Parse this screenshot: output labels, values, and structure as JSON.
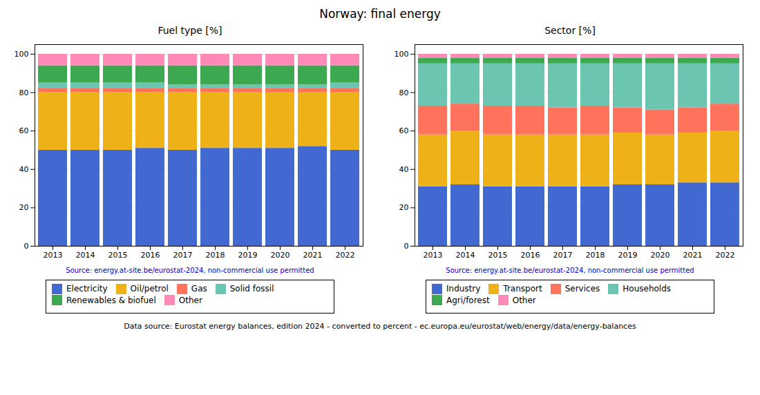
{
  "title": "Norway: final energy",
  "annotations": [
    {
      "text": "Data source: Eurostat energy balances, edition 2024 - converted to percent - ec.europa.eu/eurostat/web/energy/data/energy-balances"
    }
  ],
  "chart_data": [
    {
      "type": "bar",
      "stacked": true,
      "title": "Fuel type [%]",
      "categories": [
        "2013",
        "2014",
        "2015",
        "2016",
        "2017",
        "2018",
        "2019",
        "2020",
        "2021",
        "2022"
      ],
      "series": [
        {
          "name": "Electricity",
          "values": [
            50,
            50,
            50,
            51,
            50,
            51,
            51,
            51,
            52,
            50
          ]
        },
        {
          "name": "Oil/petrol",
          "values": [
            30,
            30,
            30,
            29,
            30,
            29,
            29,
            29,
            28,
            30
          ]
        },
        {
          "name": "Gas",
          "values": [
            2,
            2,
            2,
            2,
            2,
            2,
            2,
            2,
            2,
            2
          ]
        },
        {
          "name": "Solid fossil",
          "values": [
            3,
            3,
            3,
            3,
            2,
            2,
            2,
            2,
            2,
            3
          ]
        },
        {
          "name": "Renewables & biofuel",
          "values": [
            9,
            9,
            9,
            9,
            10,
            10,
            10,
            10,
            10,
            9
          ]
        },
        {
          "name": "Other",
          "values": [
            6,
            6,
            6,
            6,
            6,
            6,
            6,
            6,
            6,
            6
          ]
        }
      ],
      "ylim": [
        0,
        105
      ],
      "yticks": [
        0,
        20,
        40,
        60,
        80,
        100
      ],
      "grid": true,
      "legend": "bottom",
      "annotations": [
        {
          "text": "Source: energy.at-site.be/eurostat-2024, non-commercial use permitted",
          "color": "#0000cc"
        }
      ]
    },
    {
      "type": "bar",
      "stacked": true,
      "title": "Sector [%]",
      "categories": [
        "2013",
        "2014",
        "2015",
        "2016",
        "2017",
        "2018",
        "2019",
        "2020",
        "2021",
        "2022"
      ],
      "series": [
        {
          "name": "Industry",
          "values": [
            31,
            32,
            31,
            31,
            31,
            31,
            32,
            32,
            33,
            33
          ]
        },
        {
          "name": "Transport",
          "values": [
            27,
            28,
            27,
            27,
            27,
            27,
            27,
            26,
            26,
            27
          ]
        },
        {
          "name": "Services",
          "values": [
            15,
            14,
            15,
            15,
            14,
            15,
            13,
            13,
            13,
            14
          ]
        },
        {
          "name": "Households",
          "values": [
            22,
            21,
            22,
            22,
            23,
            22,
            23,
            24,
            23,
            21
          ]
        },
        {
          "name": "Agri/forest",
          "values": [
            3,
            3,
            3,
            3,
            3,
            3,
            3,
            3,
            3,
            3
          ]
        },
        {
          "name": "Other",
          "values": [
            2,
            2,
            2,
            2,
            2,
            2,
            2,
            2,
            2,
            2
          ]
        }
      ],
      "ylim": [
        0,
        105
      ],
      "yticks": [
        0,
        20,
        40,
        60,
        80,
        100
      ],
      "grid": true,
      "legend": "bottom",
      "annotations": [
        {
          "text": "Source: energy.at-site.be/eurostat-2024, non-commercial use permitted",
          "color": "#0000cc"
        }
      ]
    }
  ]
}
